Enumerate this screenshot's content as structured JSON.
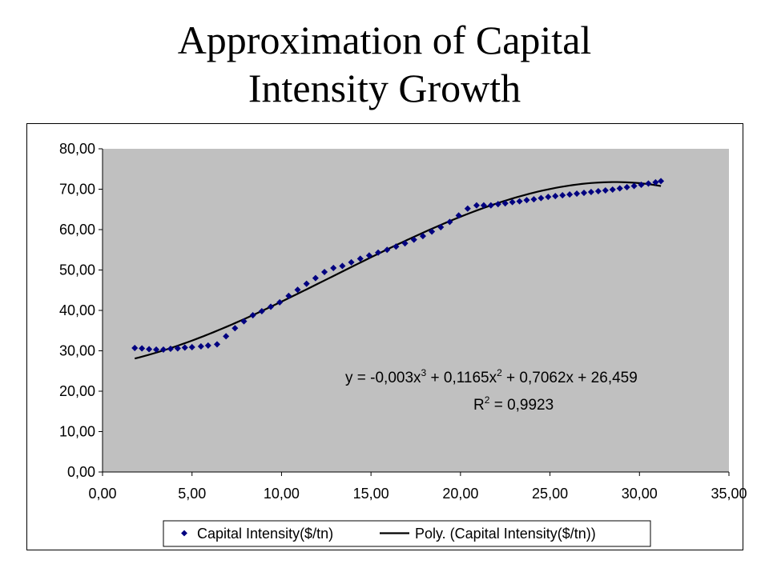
{
  "title": {
    "line1": "Approximation of Capital",
    "line2": "Intensity Growth"
  },
  "chart_data": {
    "type": "scatter",
    "title": "Approximation of Capital Intensity Growth",
    "xlabel": "",
    "ylabel": "",
    "xlim": [
      0,
      35
    ],
    "ylim": [
      0,
      80
    ],
    "x_ticks": [
      "0,00",
      "5,00",
      "10,00",
      "15,00",
      "20,00",
      "25,00",
      "30,00",
      "35,00"
    ],
    "y_ticks": [
      "0,00",
      "10,00",
      "20,00",
      "30,00",
      "40,00",
      "50,00",
      "60,00",
      "70,00",
      "80,00"
    ],
    "grid": false,
    "plot_background": "#C0C0C0",
    "legend_position": "bottom",
    "series": [
      {
        "name": "Capital Intensity($/tn)",
        "marker": "diamond",
        "color": "#000080",
        "points": [
          [
            1.8,
            30.7
          ],
          [
            2.2,
            30.6
          ],
          [
            2.6,
            30.4
          ],
          [
            3.0,
            30.3
          ],
          [
            3.4,
            30.3
          ],
          [
            3.8,
            30.5
          ],
          [
            4.2,
            30.6
          ],
          [
            4.6,
            30.8
          ],
          [
            5.0,
            30.9
          ],
          [
            5.5,
            31.1
          ],
          [
            5.9,
            31.3
          ],
          [
            6.4,
            31.6
          ],
          [
            6.9,
            33.6
          ],
          [
            7.4,
            35.6
          ],
          [
            7.9,
            37.3
          ],
          [
            8.4,
            38.8
          ],
          [
            8.9,
            39.8
          ],
          [
            9.4,
            40.9
          ],
          [
            9.9,
            42.0
          ],
          [
            10.4,
            43.6
          ],
          [
            10.9,
            45.1
          ],
          [
            11.4,
            46.6
          ],
          [
            11.9,
            48.0
          ],
          [
            12.4,
            49.5
          ],
          [
            12.9,
            50.5
          ],
          [
            13.4,
            51.0
          ],
          [
            13.9,
            51.9
          ],
          [
            14.4,
            52.8
          ],
          [
            14.9,
            53.6
          ],
          [
            15.4,
            54.3
          ],
          [
            15.9,
            55.0
          ],
          [
            16.4,
            55.8
          ],
          [
            16.9,
            56.6
          ],
          [
            17.4,
            57.5
          ],
          [
            17.9,
            58.4
          ],
          [
            18.4,
            59.5
          ],
          [
            18.9,
            60.6
          ],
          [
            19.4,
            61.9
          ],
          [
            19.9,
            63.5
          ],
          [
            20.4,
            65.2
          ],
          [
            20.9,
            66.0
          ],
          [
            21.3,
            66.0
          ],
          [
            21.7,
            66.0
          ],
          [
            22.1,
            66.3
          ],
          [
            22.5,
            66.5
          ],
          [
            22.9,
            66.8
          ],
          [
            23.3,
            67.0
          ],
          [
            23.7,
            67.3
          ],
          [
            24.1,
            67.5
          ],
          [
            24.5,
            67.8
          ],
          [
            24.9,
            68.1
          ],
          [
            25.3,
            68.3
          ],
          [
            25.7,
            68.5
          ],
          [
            26.1,
            68.7
          ],
          [
            26.5,
            68.9
          ],
          [
            26.9,
            69.1
          ],
          [
            27.3,
            69.3
          ],
          [
            27.7,
            69.5
          ],
          [
            28.1,
            69.7
          ],
          [
            28.5,
            69.9
          ],
          [
            28.9,
            70.2
          ],
          [
            29.3,
            70.5
          ],
          [
            29.7,
            70.8
          ],
          [
            30.1,
            71.1
          ],
          [
            30.5,
            71.4
          ],
          [
            30.9,
            71.7
          ],
          [
            31.2,
            72.0
          ]
        ]
      },
      {
        "name": "Poly. (Capital Intensity($/tn))",
        "type": "line",
        "color": "#000000",
        "coefficients": [
          -0.003,
          0.1165,
          0.7062,
          26.459
        ],
        "x_range": [
          1.8,
          31.2
        ]
      }
    ],
    "annotation": {
      "equation": "y = -0,003x³ + 0,1165x² + 0,7062x + 26,459",
      "r_squared": "R² = 0,9923"
    }
  }
}
